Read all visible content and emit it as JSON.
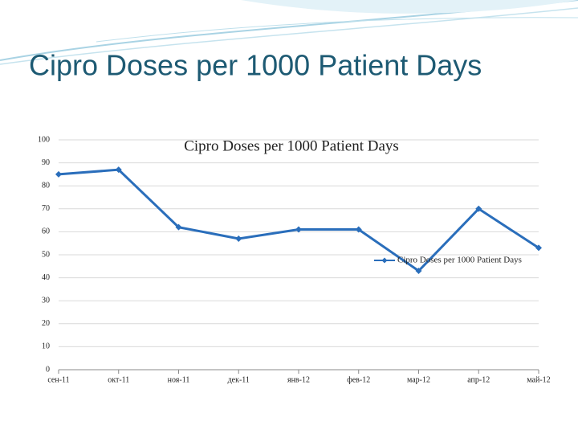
{
  "slide_title": "Cipro Doses per 1000 Patient Days",
  "chart_data": {
    "type": "line",
    "title": "Cipro Doses per 1000 Patient Days",
    "categories": [
      "сен-11",
      "окт-11",
      "ноя-11",
      "дек-11",
      "янв-12",
      "фев-12",
      "мар-12",
      "апр-12",
      "май-12"
    ],
    "series": [
      {
        "name": "Cipro Doses per 1000 Patient Days",
        "color": "#2a6ebb",
        "values": [
          85,
          87,
          62,
          57,
          61,
          61,
          43,
          70,
          53
        ]
      }
    ],
    "ylim": [
      0,
      100
    ],
    "yticks": [
      0,
      10,
      20,
      30,
      40,
      50,
      60,
      70,
      80,
      90,
      100
    ],
    "grid": true,
    "legend": "right"
  }
}
